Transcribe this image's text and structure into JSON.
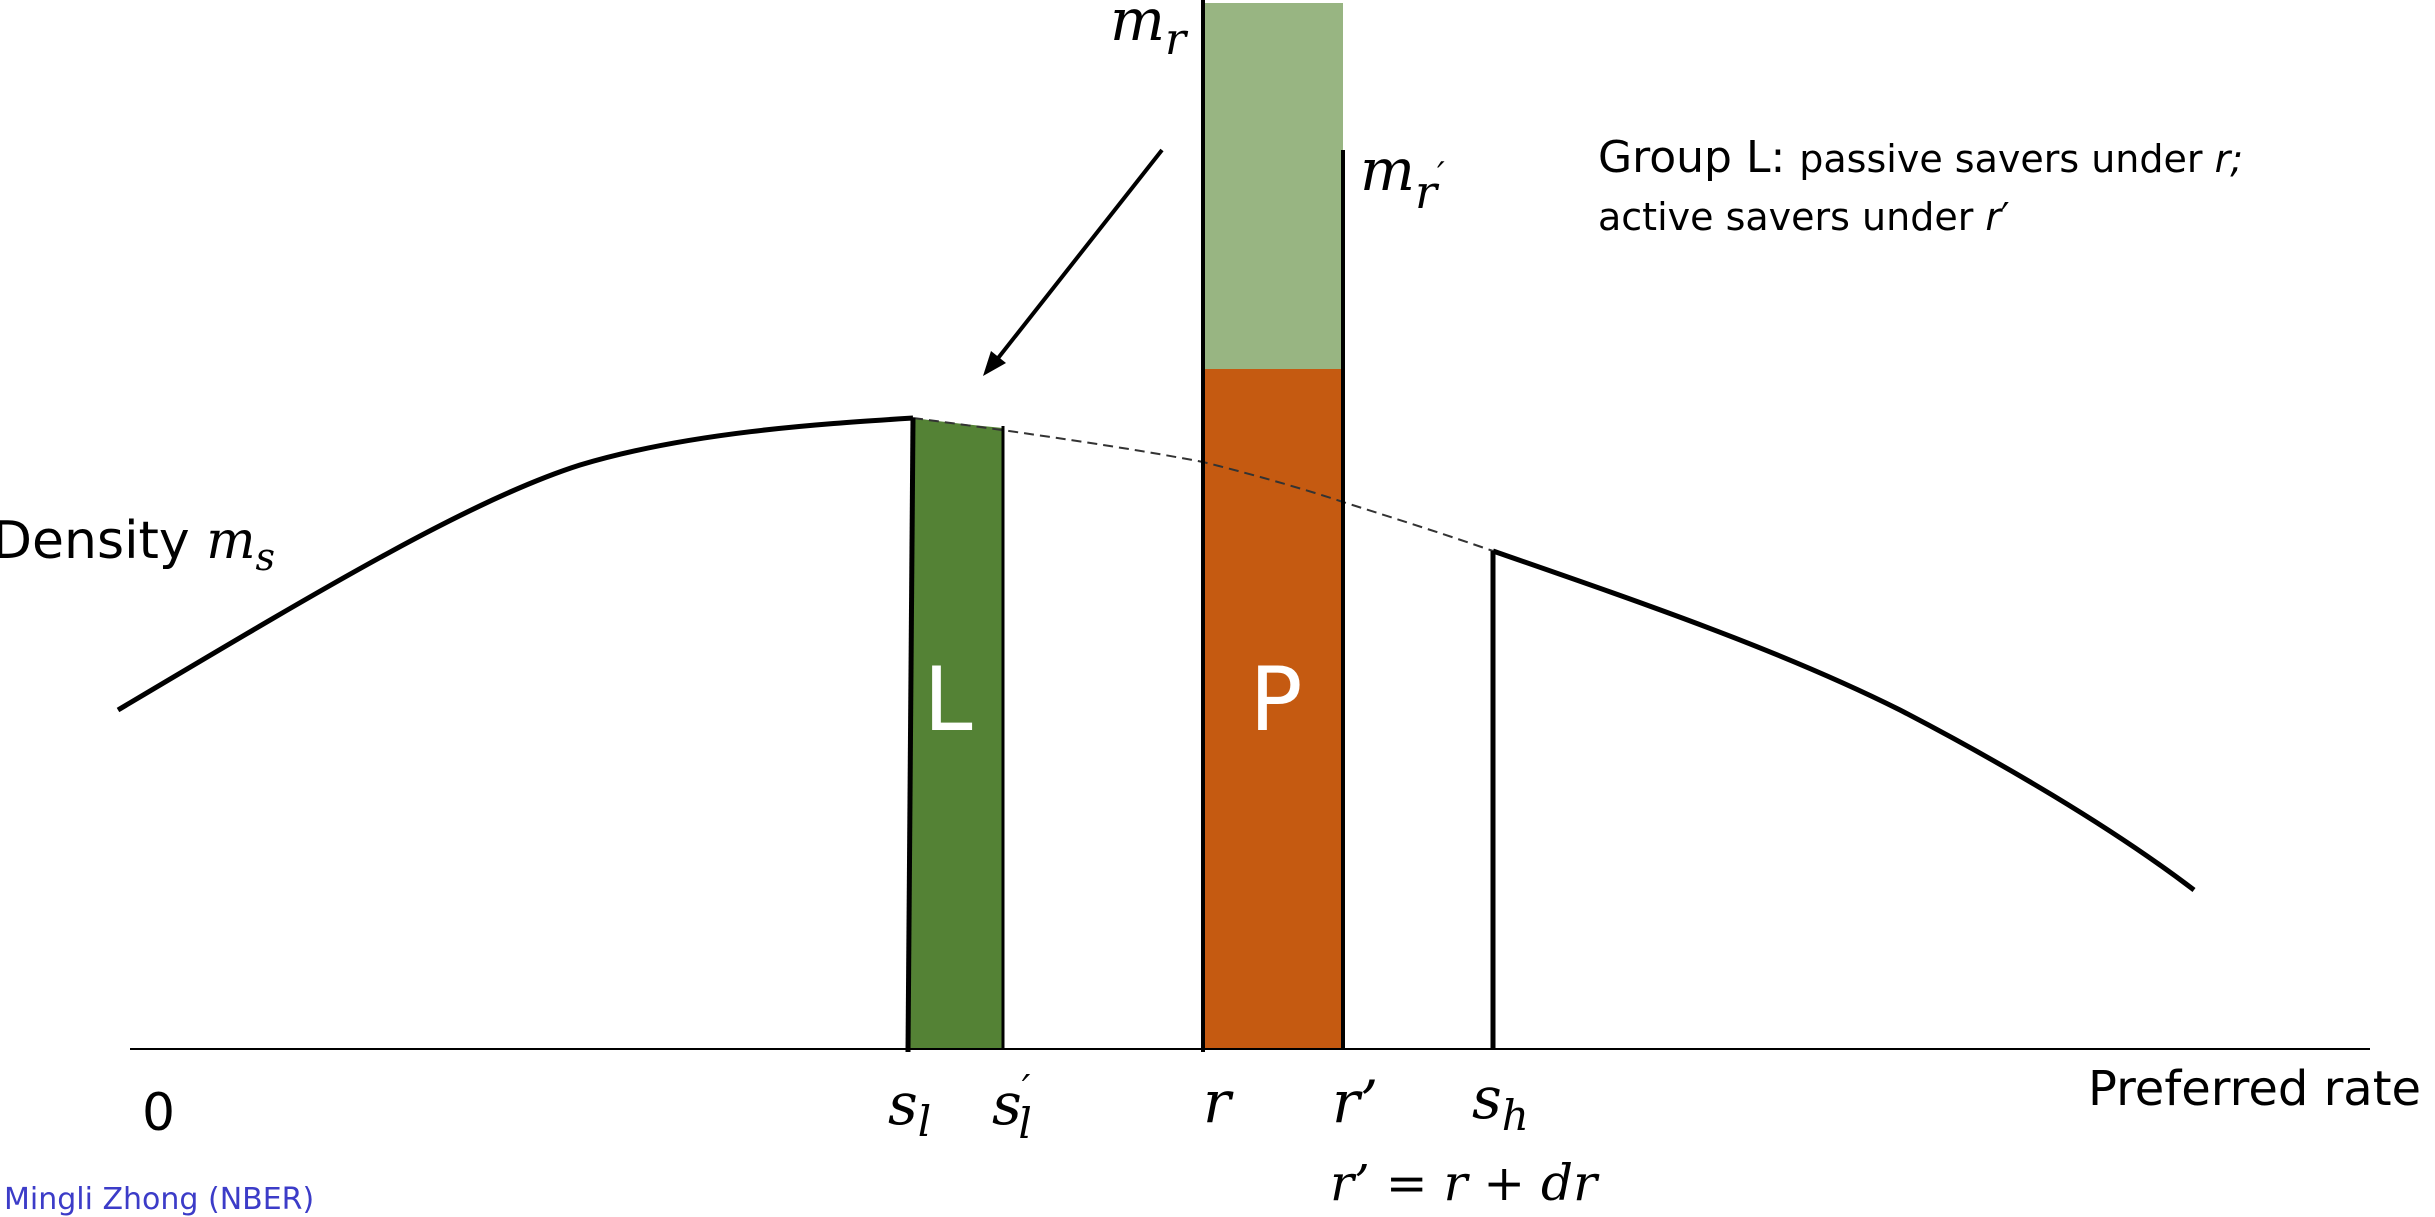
{
  "labels": {
    "density_word": "Density ",
    "density_var": "m",
    "density_sub": "s",
    "m_r_base": "m",
    "m_r_sub": "r",
    "m_rp_base": "m",
    "m_rp_sub": "r",
    "m_rp_prime": "′",
    "group_l_line1_a": "Group L: ",
    "group_l_line1_b": "passive savers under ",
    "group_l_line1_c": "r;",
    "group_l_line2_a": "active savers under ",
    "group_l_line2_b": "r",
    "group_l_line2_c": "′",
    "region_l": "L",
    "region_p": "P",
    "axis_label": "Preferred rate s",
    "tick_zero": "0",
    "tick_sl_base": "s",
    "tick_sl_sub": "l",
    "tick_slp_base": "s",
    "tick_slp_prime": "′",
    "tick_slp_sub": "l",
    "tick_r": "r",
    "tick_rp": "r’",
    "tick_sh_base": "s",
    "tick_sh_sub": "h",
    "equation": "r’ = r + dr",
    "footer": "Mingli Zhong (NBER)"
  },
  "colors": {
    "region_l": "#548235",
    "region_p": "#c55a11",
    "region_top": "#98b582",
    "curve": "#000000",
    "footer": "#3c3cc8"
  }
}
